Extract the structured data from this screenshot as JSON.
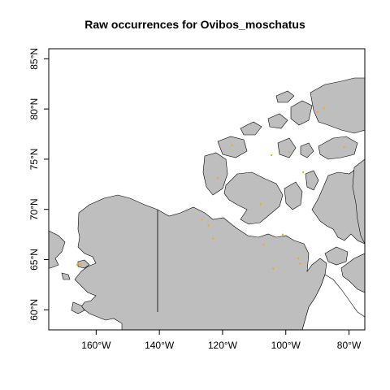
{
  "map": {
    "title": "Raw occurrences for Ovibos_moschatus",
    "land_color": "#bebebe",
    "border_color": "#000000",
    "point_color": "#ffa500",
    "lon_range": [
      -175,
      -75
    ],
    "lat_range": [
      58,
      86
    ],
    "lon_ticks": [
      {
        "value": -160,
        "label": "160°W"
      },
      {
        "value": -140,
        "label": "140°W"
      },
      {
        "value": -120,
        "label": "120°W"
      },
      {
        "value": -100,
        "label": "100°W"
      },
      {
        "value": -80,
        "label": "80°W"
      }
    ],
    "lat_ticks": [
      {
        "value": 60,
        "label": "60°N"
      },
      {
        "value": 65,
        "label": "65°N"
      },
      {
        "value": 70,
        "label": "70°N"
      },
      {
        "value": 75,
        "label": "75°N"
      },
      {
        "value": 80,
        "label": "80°N"
      },
      {
        "value": 85,
        "label": "85°N"
      }
    ],
    "occurrences": [
      {
        "lon": -165.5,
        "lat": 64.6
      },
      {
        "lon": -164.8,
        "lat": 64.5
      },
      {
        "lon": -166.0,
        "lat": 64.5
      },
      {
        "lon": -126.5,
        "lat": 69.0
      },
      {
        "lon": -124.5,
        "lat": 68.4
      },
      {
        "lon": -123.0,
        "lat": 67.1
      },
      {
        "lon": -121.5,
        "lat": 73.1
      },
      {
        "lon": -108.0,
        "lat": 70.5
      },
      {
        "lon": -107.0,
        "lat": 66.5
      },
      {
        "lon": -101.0,
        "lat": 67.5
      },
      {
        "lon": -104.0,
        "lat": 64.1
      },
      {
        "lon": -96.0,
        "lat": 65.1
      },
      {
        "lon": -95.5,
        "lat": 64.6
      },
      {
        "lon": -94.5,
        "lat": 73.7
      },
      {
        "lon": -104.5,
        "lat": 75.4
      },
      {
        "lon": -99.0,
        "lat": 75.7
      },
      {
        "lon": -90.0,
        "lat": 79.7
      },
      {
        "lon": -88.0,
        "lat": 80.1
      },
      {
        "lon": -81.5,
        "lat": 76.2
      },
      {
        "lon": -117.0,
        "lat": 76.4
      }
    ]
  }
}
